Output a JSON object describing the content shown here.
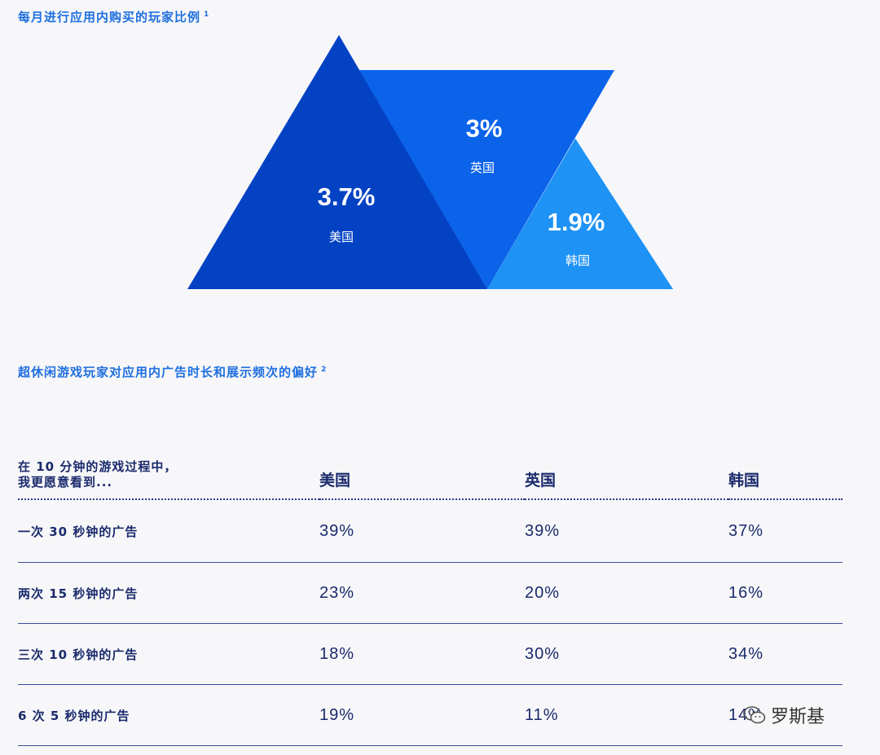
{
  "section1": {
    "title": "每月进行应用内购买的玩家比例",
    "footnote": "1"
  },
  "section2": {
    "title": "超休闲游戏玩家对应用内广告时长和展示频次的偏好",
    "footnote": "2"
  },
  "chart_data": [
    {
      "type": "triangle-area",
      "title": "每月进行应用内购买的玩家比例",
      "categories": [
        "美国",
        "英国",
        "韩国"
      ],
      "values": [
        3.7,
        3.0,
        1.9
      ],
      "labels": [
        "3.7%",
        "3%",
        "1.9%"
      ],
      "unit": "%",
      "colors": [
        "#0442c4",
        "#0b63ea",
        "#1e92f5"
      ]
    },
    {
      "type": "table",
      "title": "超休闲游戏玩家对应用内广告时长和展示频次的偏好",
      "header_question": "在 10 分钟的游戏过程中，\n我更愿意看到...",
      "columns": [
        "美国",
        "英国",
        "韩国"
      ],
      "rows": [
        {
          "label": "一次 30 秒钟的广告",
          "values": [
            "39%",
            "39%",
            "37%"
          ]
        },
        {
          "label": "两次 15 秒钟的广告",
          "values": [
            "23%",
            "20%",
            "16%"
          ]
        },
        {
          "label": "三次 10 秒钟的广告",
          "values": [
            "18%",
            "30%",
            "34%"
          ]
        },
        {
          "label": "6 次 5 秒钟的广告",
          "values": [
            "19%",
            "11%",
            "14%"
          ]
        }
      ]
    }
  ],
  "watermark": {
    "text": "罗斯基",
    "icon": "wechat-icon"
  }
}
